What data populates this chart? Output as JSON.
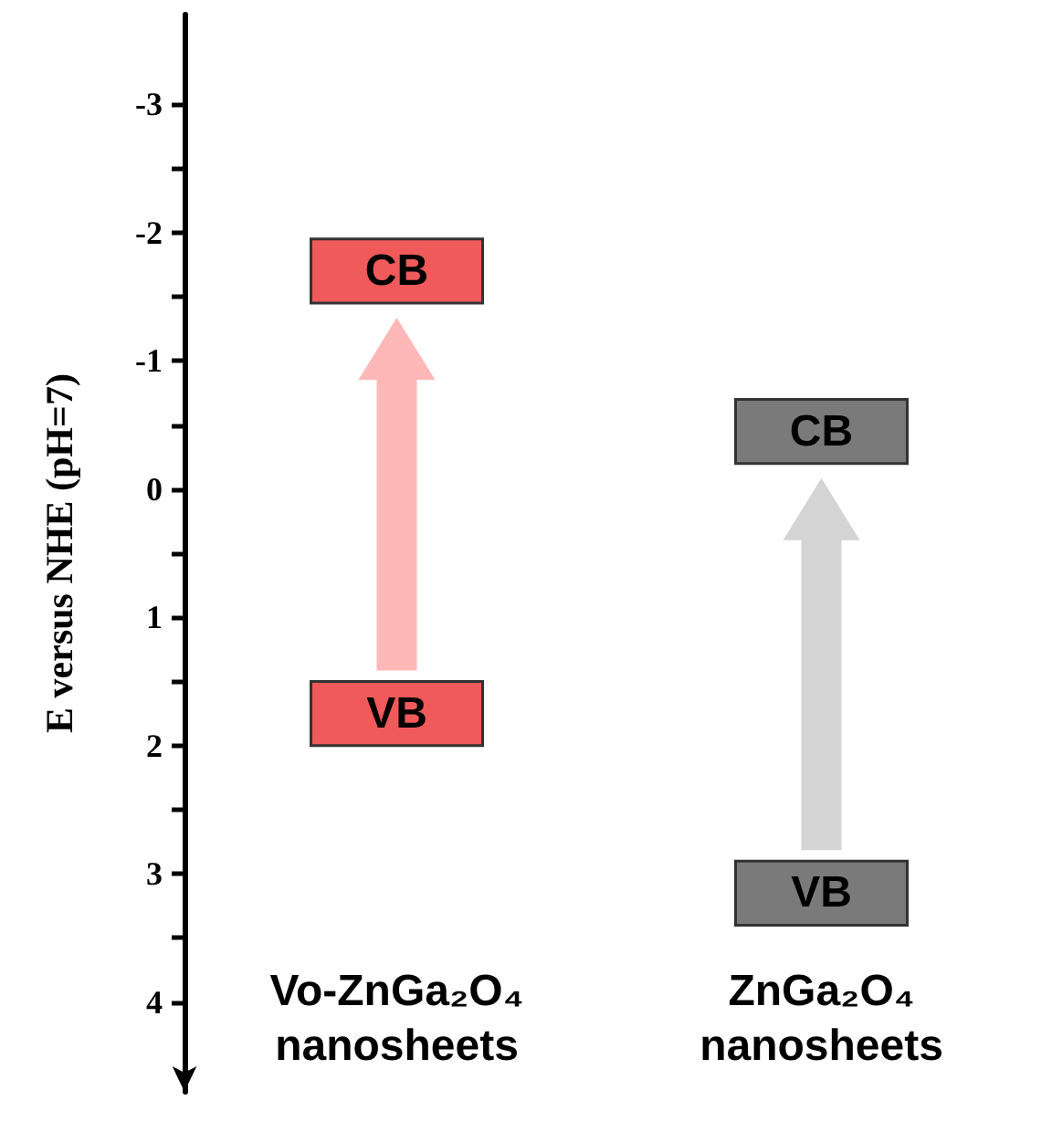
{
  "chart_data": {
    "type": "bar",
    "ylabel": "E versus NHE (pH=7)",
    "categories": [
      "Vo-ZnGa₂O₄ nanosheets",
      "ZnGa₂O₄ nanosheets"
    ],
    "series": [
      {
        "base": [
          -1.95,
          -0.7
        ],
        "values": [
          0.5,
          0.5
        ],
        "colors": [
          "#f05a5a",
          "#7a7a7a"
        ],
        "value_labels": [
          "CB",
          "CB"
        ]
      },
      {
        "base": [
          1.5,
          2.9
        ],
        "values": [
          0.5,
          0.5
        ],
        "colors": [
          "#f05a5a",
          "#7a7a7a"
        ],
        "value_labels": [
          "VB",
          "VB"
        ]
      }
    ],
    "ylim": [
      4.7,
      -3.7
    ],
    "yticks": [
      -3,
      {
        "value": -2.5,
        "label": null
      },
      -2,
      {
        "value": -1.5,
        "label": null
      },
      -1,
      {
        "value": -0.5,
        "label": null
      },
      0,
      {
        "value": 0.5,
        "label": null
      },
      1,
      {
        "value": 1.5,
        "label": null
      },
      2,
      {
        "value": 2.5,
        "label": null
      },
      3,
      {
        "value": 3.5,
        "label": null
      },
      4
    ]
  }
}
